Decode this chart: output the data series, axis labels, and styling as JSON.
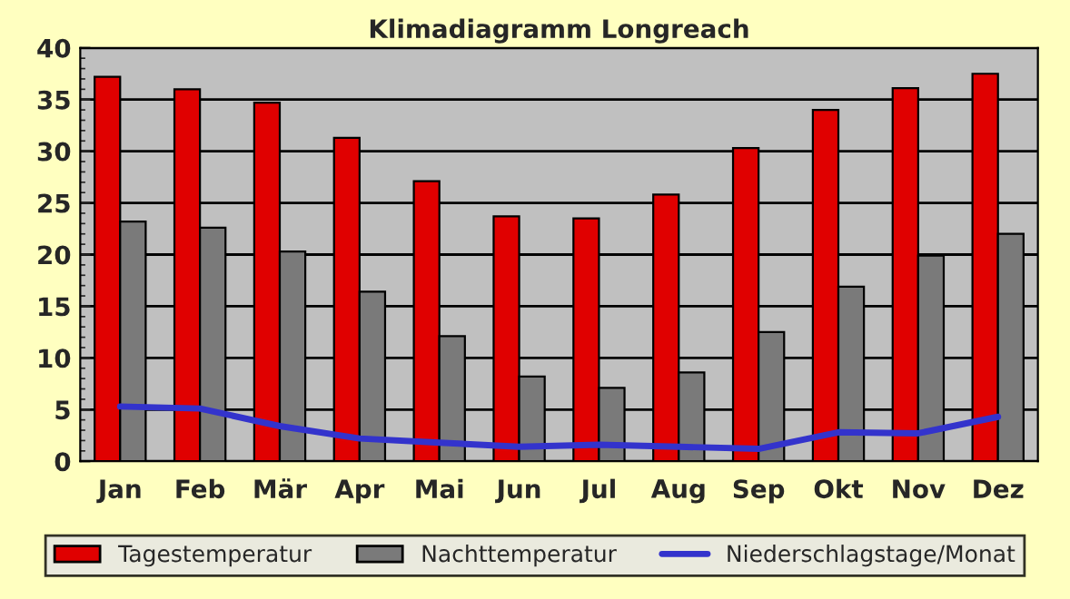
{
  "chart_data": {
    "type": "bar",
    "title": "Klimadiagramm Longreach",
    "categories": [
      "Jan",
      "Feb",
      "Mär",
      "Apr",
      "Mai",
      "Jun",
      "Jul",
      "Aug",
      "Sep",
      "Okt",
      "Nov",
      "Dez"
    ],
    "series": [
      {
        "name": "Tagestemperatur",
        "color": "#e00000",
        "values": [
          37.2,
          36.0,
          34.7,
          31.3,
          27.1,
          23.7,
          23.5,
          25.8,
          30.3,
          34.0,
          36.1,
          37.5
        ]
      },
      {
        "name": "Nachttemperatur",
        "color": "#7a7a7a",
        "values": [
          23.2,
          22.6,
          20.3,
          16.4,
          12.1,
          8.2,
          7.1,
          8.6,
          12.5,
          16.9,
          19.9,
          22.0
        ]
      },
      {
        "name": "Niederschlagstage/Monat",
        "type": "line",
        "color": "#3333cc",
        "values": [
          5.3,
          5.1,
          3.4,
          2.2,
          1.8,
          1.4,
          1.6,
          1.4,
          1.2,
          2.8,
          2.7,
          4.3
        ]
      }
    ],
    "ylim": [
      0,
      40
    ],
    "yticks": [
      0,
      5,
      10,
      15,
      20,
      25,
      30,
      35,
      40
    ],
    "grid": "y",
    "legend": "bottom",
    "marker": "none",
    "line_style": "solid"
  }
}
